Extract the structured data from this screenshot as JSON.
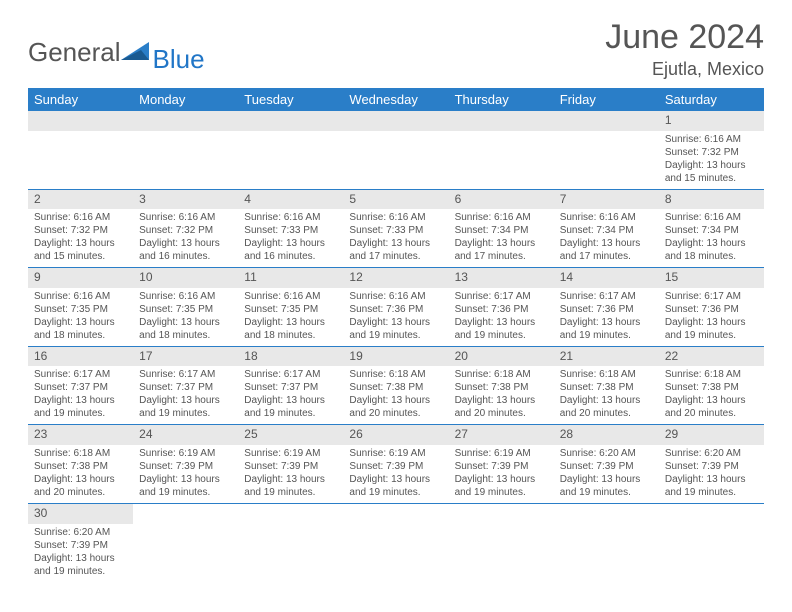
{
  "logo": {
    "text_gray": "General",
    "text_blue": "Blue",
    "tri_color": "#2a7ec8"
  },
  "title": "June 2024",
  "location": "Ejutla, Mexico",
  "weekdays": [
    "Sunday",
    "Monday",
    "Tuesday",
    "Wednesday",
    "Thursday",
    "Friday",
    "Saturday"
  ],
  "colors": {
    "header_bg": "#2a7ec8",
    "header_text": "#ffffff",
    "daynum_bg": "#e8e8e8",
    "border": "#2a7ec8",
    "text": "#555555"
  },
  "weeks": [
    [
      null,
      null,
      null,
      null,
      null,
      null,
      {
        "n": "1",
        "sr": "Sunrise: 6:16 AM",
        "ss": "Sunset: 7:32 PM",
        "dl": "Daylight: 13 hours and 15 minutes."
      }
    ],
    [
      {
        "n": "2",
        "sr": "Sunrise: 6:16 AM",
        "ss": "Sunset: 7:32 PM",
        "dl": "Daylight: 13 hours and 15 minutes."
      },
      {
        "n": "3",
        "sr": "Sunrise: 6:16 AM",
        "ss": "Sunset: 7:32 PM",
        "dl": "Daylight: 13 hours and 16 minutes."
      },
      {
        "n": "4",
        "sr": "Sunrise: 6:16 AM",
        "ss": "Sunset: 7:33 PM",
        "dl": "Daylight: 13 hours and 16 minutes."
      },
      {
        "n": "5",
        "sr": "Sunrise: 6:16 AM",
        "ss": "Sunset: 7:33 PM",
        "dl": "Daylight: 13 hours and 17 minutes."
      },
      {
        "n": "6",
        "sr": "Sunrise: 6:16 AM",
        "ss": "Sunset: 7:34 PM",
        "dl": "Daylight: 13 hours and 17 minutes."
      },
      {
        "n": "7",
        "sr": "Sunrise: 6:16 AM",
        "ss": "Sunset: 7:34 PM",
        "dl": "Daylight: 13 hours and 17 minutes."
      },
      {
        "n": "8",
        "sr": "Sunrise: 6:16 AM",
        "ss": "Sunset: 7:34 PM",
        "dl": "Daylight: 13 hours and 18 minutes."
      }
    ],
    [
      {
        "n": "9",
        "sr": "Sunrise: 6:16 AM",
        "ss": "Sunset: 7:35 PM",
        "dl": "Daylight: 13 hours and 18 minutes."
      },
      {
        "n": "10",
        "sr": "Sunrise: 6:16 AM",
        "ss": "Sunset: 7:35 PM",
        "dl": "Daylight: 13 hours and 18 minutes."
      },
      {
        "n": "11",
        "sr": "Sunrise: 6:16 AM",
        "ss": "Sunset: 7:35 PM",
        "dl": "Daylight: 13 hours and 18 minutes."
      },
      {
        "n": "12",
        "sr": "Sunrise: 6:16 AM",
        "ss": "Sunset: 7:36 PM",
        "dl": "Daylight: 13 hours and 19 minutes."
      },
      {
        "n": "13",
        "sr": "Sunrise: 6:17 AM",
        "ss": "Sunset: 7:36 PM",
        "dl": "Daylight: 13 hours and 19 minutes."
      },
      {
        "n": "14",
        "sr": "Sunrise: 6:17 AM",
        "ss": "Sunset: 7:36 PM",
        "dl": "Daylight: 13 hours and 19 minutes."
      },
      {
        "n": "15",
        "sr": "Sunrise: 6:17 AM",
        "ss": "Sunset: 7:36 PM",
        "dl": "Daylight: 13 hours and 19 minutes."
      }
    ],
    [
      {
        "n": "16",
        "sr": "Sunrise: 6:17 AM",
        "ss": "Sunset: 7:37 PM",
        "dl": "Daylight: 13 hours and 19 minutes."
      },
      {
        "n": "17",
        "sr": "Sunrise: 6:17 AM",
        "ss": "Sunset: 7:37 PM",
        "dl": "Daylight: 13 hours and 19 minutes."
      },
      {
        "n": "18",
        "sr": "Sunrise: 6:17 AM",
        "ss": "Sunset: 7:37 PM",
        "dl": "Daylight: 13 hours and 19 minutes."
      },
      {
        "n": "19",
        "sr": "Sunrise: 6:18 AM",
        "ss": "Sunset: 7:38 PM",
        "dl": "Daylight: 13 hours and 20 minutes."
      },
      {
        "n": "20",
        "sr": "Sunrise: 6:18 AM",
        "ss": "Sunset: 7:38 PM",
        "dl": "Daylight: 13 hours and 20 minutes."
      },
      {
        "n": "21",
        "sr": "Sunrise: 6:18 AM",
        "ss": "Sunset: 7:38 PM",
        "dl": "Daylight: 13 hours and 20 minutes."
      },
      {
        "n": "22",
        "sr": "Sunrise: 6:18 AM",
        "ss": "Sunset: 7:38 PM",
        "dl": "Daylight: 13 hours and 20 minutes."
      }
    ],
    [
      {
        "n": "23",
        "sr": "Sunrise: 6:18 AM",
        "ss": "Sunset: 7:38 PM",
        "dl": "Daylight: 13 hours and 20 minutes."
      },
      {
        "n": "24",
        "sr": "Sunrise: 6:19 AM",
        "ss": "Sunset: 7:39 PM",
        "dl": "Daylight: 13 hours and 19 minutes."
      },
      {
        "n": "25",
        "sr": "Sunrise: 6:19 AM",
        "ss": "Sunset: 7:39 PM",
        "dl": "Daylight: 13 hours and 19 minutes."
      },
      {
        "n": "26",
        "sr": "Sunrise: 6:19 AM",
        "ss": "Sunset: 7:39 PM",
        "dl": "Daylight: 13 hours and 19 minutes."
      },
      {
        "n": "27",
        "sr": "Sunrise: 6:19 AM",
        "ss": "Sunset: 7:39 PM",
        "dl": "Daylight: 13 hours and 19 minutes."
      },
      {
        "n": "28",
        "sr": "Sunrise: 6:20 AM",
        "ss": "Sunset: 7:39 PM",
        "dl": "Daylight: 13 hours and 19 minutes."
      },
      {
        "n": "29",
        "sr": "Sunrise: 6:20 AM",
        "ss": "Sunset: 7:39 PM",
        "dl": "Daylight: 13 hours and 19 minutes."
      }
    ],
    [
      {
        "n": "30",
        "sr": "Sunrise: 6:20 AM",
        "ss": "Sunset: 7:39 PM",
        "dl": "Daylight: 13 hours and 19 minutes."
      },
      null,
      null,
      null,
      null,
      null,
      null
    ]
  ]
}
